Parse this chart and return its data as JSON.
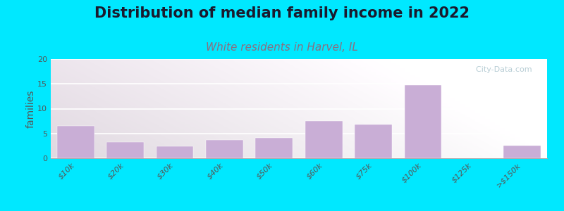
{
  "title": "Distribution of median family income in 2022",
  "subtitle": "White residents in Harvel, IL",
  "ylabel": "families",
  "categories": [
    "$10k",
    "$20k",
    "$30k",
    "$40k",
    "$50k",
    "$60k",
    "$75k",
    "$100k",
    "$125k",
    ">$150k"
  ],
  "values": [
    6.5,
    3.2,
    2.4,
    3.7,
    4.1,
    7.5,
    6.8,
    14.8,
    0,
    2.5
  ],
  "bar_color": "#c9aed6",
  "ylim": [
    0,
    20
  ],
  "yticks": [
    0,
    5,
    10,
    15,
    20
  ],
  "background_outer": "#00e8ff",
  "title_fontsize": 15,
  "subtitle_fontsize": 11,
  "subtitle_color": "#8b6e7f",
  "ylabel_fontsize": 10,
  "tick_fontsize": 8,
  "watermark_text": "  City-Data.com",
  "watermark_color": "#b0c8d0"
}
